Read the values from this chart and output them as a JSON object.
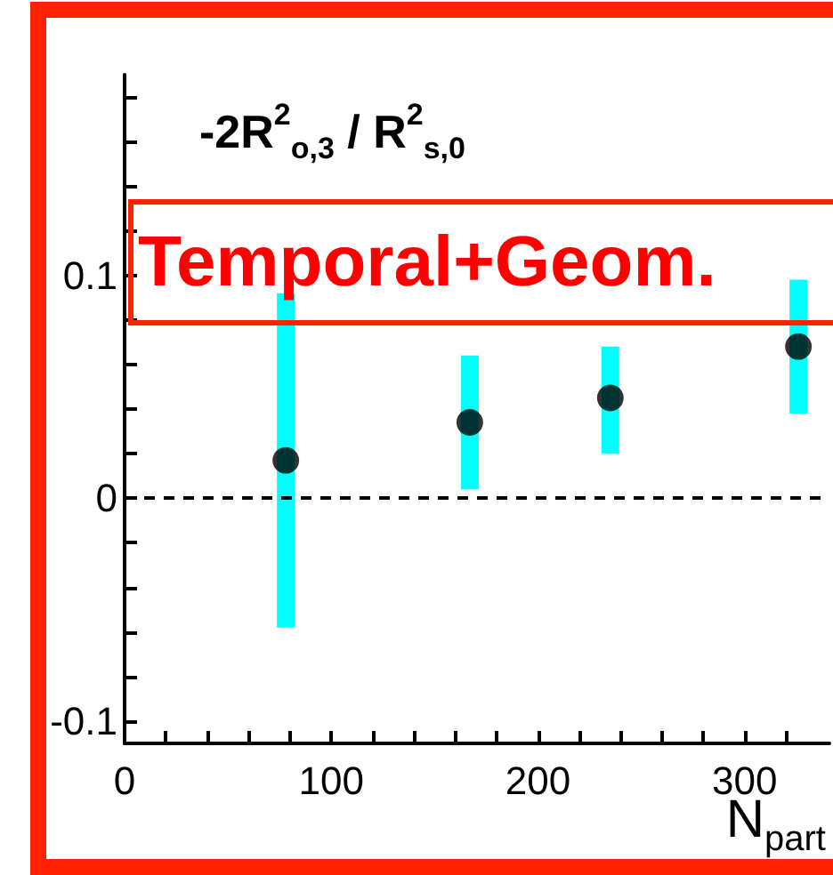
{
  "chart_data": {
    "type": "scatter",
    "title": "-2R$^{2}$$_{o,3}$ / R$^{2}$$_{s,0}$",
    "xlabel": "N$_{part}$",
    "annotations": [
      "Temporal+Geom."
    ],
    "x": [
      78,
      167,
      235,
      326
    ],
    "series": [
      {
        "color": "#000000",
        "values": [
          0.017,
          0.034,
          0.045,
          0.068
        ],
        "errors": [
          [
            -0.058,
            0.092
          ],
          [
            0.004,
            0.064
          ],
          [
            0.02,
            0.068
          ],
          [
            0.038,
            0.098
          ]
        ]
      }
    ],
    "marker": "circle",
    "xlim": [
      0,
      341
    ],
    "xticks": [
      0,
      {
        "value": 20,
        "label": null
      },
      {
        "value": 40,
        "label": null
      },
      {
        "value": 60,
        "label": null
      },
      {
        "value": 80,
        "label": null
      },
      100,
      {
        "value": 120,
        "label": null
      },
      {
        "value": 140,
        "label": null
      },
      {
        "value": 160,
        "label": null
      },
      {
        "value": 180,
        "label": null
      },
      200,
      {
        "value": 220,
        "label": null
      },
      {
        "value": 240,
        "label": null
      },
      {
        "value": 260,
        "label": null
      },
      {
        "value": 280,
        "label": null
      },
      300,
      {
        "value": 320,
        "label": null
      }
    ],
    "ylim": [
      -0.11,
      0.19
    ],
    "yticks": [
      -0.1,
      {
        "value": -0.08,
        "label": null
      },
      {
        "value": -0.06,
        "label": null
      },
      {
        "value": -0.04,
        "label": null
      },
      {
        "value": -0.02,
        "label": null
      },
      0,
      {
        "value": 0.02,
        "label": null
      },
      {
        "value": 0.04,
        "label": null
      },
      {
        "value": 0.06,
        "label": null
      },
      {
        "value": 0.08,
        "label": null
      },
      0.1,
      {
        "value": 0.12,
        "label": null
      },
      {
        "value": 0.14,
        "label": null
      },
      {
        "value": 0.16,
        "label": null
      },
      {
        "value": 0.18,
        "label": null
      }
    ],
    "ref_lines": [
      {
        "axis": "y",
        "value": 0,
        "line_style": "dashed",
        "color": "#000000"
      }
    ],
    "tick_labels": true
  }
}
